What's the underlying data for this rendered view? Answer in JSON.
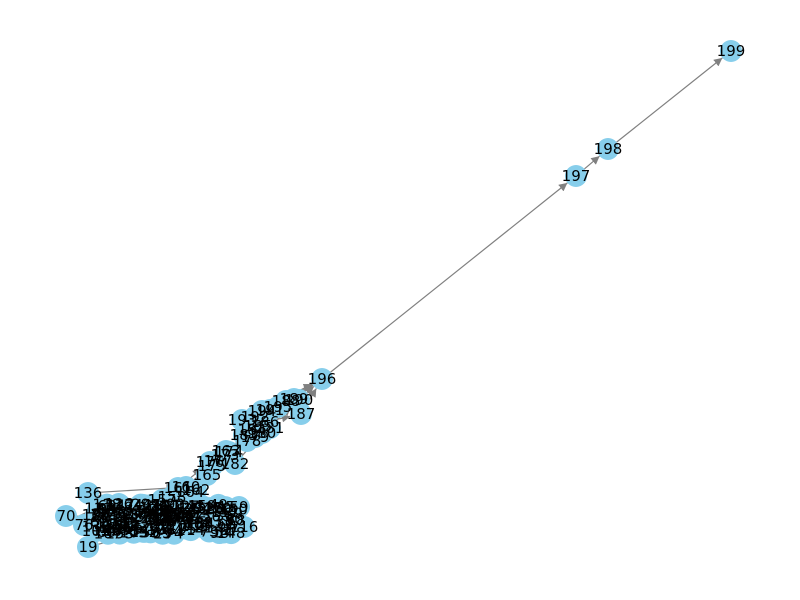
{
  "colors": {
    "node": "#87ceeb",
    "edge": "#808080",
    "label": "#000000",
    "background": "#ffffff"
  },
  "graph": {
    "nodes": [
      "199",
      "198",
      "197",
      "196",
      "193",
      "194",
      "195",
      "187",
      "188",
      "189",
      "190",
      "191",
      "192",
      "183",
      "184",
      "185",
      "186",
      "178",
      "179",
      "180",
      "181",
      "182",
      "173",
      "174",
      "175",
      "176",
      "177",
      "163",
      "162",
      "164",
      "161",
      "165",
      "160",
      "158",
      "159",
      "157",
      "136",
      "137",
      "138",
      "139",
      "140",
      "141",
      "142",
      "143",
      "144",
      "145",
      "146",
      "147",
      "148",
      "149",
      "150",
      "151",
      "152",
      "153",
      "154",
      "155",
      "156",
      "79",
      "80",
      "81",
      "82",
      "83",
      "84",
      "85",
      "86",
      "87",
      "88",
      "89",
      "90",
      "91",
      "92",
      "93",
      "94",
      "95",
      "96",
      "97",
      "98",
      "99",
      "100",
      "101",
      "102",
      "103",
      "104",
      "105",
      "106",
      "107",
      "108",
      "109",
      "110",
      "111",
      "112",
      "113",
      "114",
      "115",
      "116",
      "117",
      "118",
      "119",
      "120",
      "121",
      "122",
      "123",
      "124",
      "125",
      "126",
      "127",
      "128",
      "129",
      "130",
      "131",
      "132",
      "133",
      "134",
      "135",
      "59",
      "60",
      "61",
      "62",
      "63",
      "64",
      "65",
      "66",
      "67",
      "68",
      "69",
      "70",
      "71",
      "72",
      "73",
      "74",
      "75",
      "76",
      "77",
      "78",
      "19",
      "20",
      "21",
      "22",
      "23",
      "24",
      "25",
      "26",
      "27",
      "28",
      "29",
      "30",
      "31",
      "32",
      "33",
      "34",
      "35",
      "36",
      "37",
      "38",
      "39",
      "40",
      "41",
      "42",
      "43",
      "44",
      "45",
      "46",
      "47",
      "48",
      "49",
      "50",
      "51",
      "52",
      "53",
      "54",
      "55",
      "56",
      "57",
      "58"
    ],
    "edges": [
      [
        "197",
        "198"
      ],
      [
        "198",
        "199"
      ],
      [
        "196",
        "197"
      ],
      [
        "193",
        "196"
      ],
      [
        "194",
        "196"
      ],
      [
        "195",
        "196"
      ],
      [
        "187",
        "196"
      ],
      [
        "188",
        "196"
      ],
      [
        "189",
        "196"
      ],
      [
        "190",
        "196"
      ],
      [
        "183",
        "193"
      ],
      [
        "184",
        "194"
      ],
      [
        "185",
        "195"
      ],
      [
        "186",
        "187"
      ],
      [
        "178",
        "188"
      ],
      [
        "179",
        "189"
      ],
      [
        "180",
        "190"
      ],
      [
        "173",
        "183"
      ],
      [
        "174",
        "184"
      ],
      [
        "175",
        "185"
      ],
      [
        "176",
        "186"
      ],
      [
        "177",
        "178"
      ],
      [
        "181",
        "179"
      ],
      [
        "182",
        "180"
      ],
      [
        "163",
        "173"
      ],
      [
        "162",
        "174"
      ],
      [
        "164",
        "175"
      ],
      [
        "161",
        "176"
      ],
      [
        "165",
        "177"
      ],
      [
        "160",
        "163"
      ],
      [
        "158",
        "162"
      ],
      [
        "159",
        "164"
      ],
      [
        "157",
        "161"
      ],
      [
        "136",
        "160"
      ],
      [
        "137",
        "158"
      ],
      [
        "138",
        "159"
      ],
      [
        "139",
        "157"
      ],
      [
        "140",
        "165"
      ],
      [
        "79",
        "136"
      ],
      [
        "80",
        "137"
      ],
      [
        "81",
        "138"
      ],
      [
        "82",
        "139"
      ],
      [
        "83",
        "140"
      ],
      [
        "84",
        "160"
      ],
      [
        "85",
        "158"
      ],
      [
        "86",
        "159"
      ],
      [
        "87",
        "157"
      ],
      [
        "88",
        "136"
      ],
      [
        "89",
        "137"
      ],
      [
        "90",
        "138"
      ],
      [
        "91",
        "139"
      ],
      [
        "92",
        "140"
      ],
      [
        "93",
        "160"
      ],
      [
        "94",
        "158"
      ],
      [
        "95",
        "159"
      ],
      [
        "96",
        "157"
      ],
      [
        "97",
        "136"
      ],
      [
        "98",
        "137"
      ],
      [
        "99",
        "138"
      ],
      [
        "100",
        "139"
      ],
      [
        "101",
        "140"
      ],
      [
        "102",
        "160"
      ],
      [
        "103",
        "158"
      ],
      [
        "104",
        "159"
      ],
      [
        "105",
        "157"
      ],
      [
        "106",
        "136"
      ],
      [
        "107",
        "137"
      ],
      [
        "108",
        "138"
      ],
      [
        "109",
        "139"
      ],
      [
        "110",
        "140"
      ],
      [
        "111",
        "160"
      ],
      [
        "112",
        "158"
      ],
      [
        "113",
        "159"
      ],
      [
        "114",
        "157"
      ],
      [
        "115",
        "136"
      ],
      [
        "116",
        "137"
      ],
      [
        "117",
        "138"
      ],
      [
        "118",
        "139"
      ],
      [
        "119",
        "140"
      ],
      [
        "120",
        "160"
      ],
      [
        "121",
        "158"
      ],
      [
        "122",
        "159"
      ],
      [
        "123",
        "157"
      ],
      [
        "124",
        "136"
      ],
      [
        "125",
        "137"
      ],
      [
        "126",
        "138"
      ],
      [
        "127",
        "139"
      ],
      [
        "128",
        "140"
      ],
      [
        "129",
        "160"
      ],
      [
        "130",
        "158"
      ],
      [
        "131",
        "159"
      ],
      [
        "132",
        "157"
      ],
      [
        "133",
        "136"
      ],
      [
        "134",
        "137"
      ],
      [
        "135",
        "138"
      ],
      [
        "59",
        "80"
      ],
      [
        "60",
        "81"
      ],
      [
        "61",
        "82"
      ],
      [
        "62",
        "83"
      ],
      [
        "63",
        "84"
      ],
      [
        "64",
        "85"
      ],
      [
        "65",
        "86"
      ],
      [
        "66",
        "87"
      ],
      [
        "67",
        "88"
      ],
      [
        "68",
        "89"
      ],
      [
        "69",
        "90"
      ],
      [
        "70",
        "91"
      ],
      [
        "71",
        "92"
      ],
      [
        "72",
        "93"
      ],
      [
        "73",
        "94"
      ],
      [
        "74",
        "95"
      ],
      [
        "75",
        "96"
      ],
      [
        "76",
        "97"
      ],
      [
        "77",
        "98"
      ],
      [
        "78",
        "99"
      ],
      [
        "19",
        "59"
      ],
      [
        "20",
        "60"
      ],
      [
        "21",
        "61"
      ],
      [
        "22",
        "62"
      ],
      [
        "23",
        "63"
      ],
      [
        "24",
        "64"
      ],
      [
        "25",
        "65"
      ],
      [
        "26",
        "66"
      ],
      [
        "27",
        "67"
      ],
      [
        "28",
        "68"
      ],
      [
        "29",
        "69"
      ],
      [
        "30",
        "70"
      ],
      [
        "31",
        "71"
      ],
      [
        "32",
        "72"
      ],
      [
        "33",
        "73"
      ],
      [
        "34",
        "74"
      ],
      [
        "35",
        "75"
      ],
      [
        "36",
        "76"
      ],
      [
        "37",
        "77"
      ],
      [
        "38",
        "78"
      ],
      [
        "39",
        "79"
      ],
      [
        "40",
        "80"
      ],
      [
        "41",
        "81"
      ],
      [
        "42",
        "82"
      ],
      [
        "43",
        "83"
      ],
      [
        "44",
        "84"
      ],
      [
        "45",
        "85"
      ],
      [
        "46",
        "86"
      ],
      [
        "47",
        "87"
      ],
      [
        "48",
        "88"
      ],
      [
        "49",
        "89"
      ],
      [
        "50",
        "90"
      ],
      [
        "51",
        "91"
      ],
      [
        "52",
        "92"
      ],
      [
        "53",
        "93"
      ],
      [
        "54",
        "94"
      ],
      [
        "55",
        "95"
      ],
      [
        "56",
        "96"
      ],
      [
        "57",
        "97"
      ],
      [
        "58",
        "98"
      ]
    ]
  }
}
